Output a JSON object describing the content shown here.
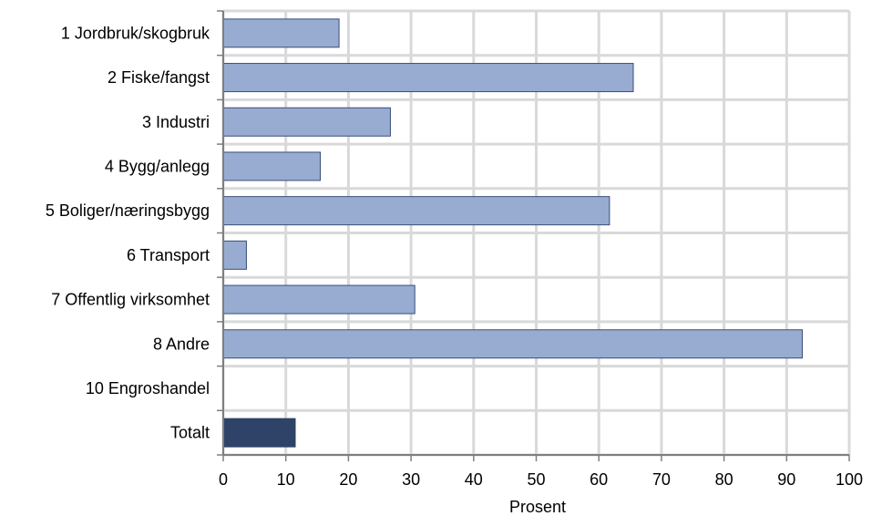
{
  "chart_data": {
    "type": "bar",
    "orientation": "horizontal",
    "categories": [
      "1 Jordbruk/skogbruk",
      "2 Fiske/fangst",
      "3 Industri",
      "4 Bygg/anlegg",
      "5 Boliger/næringsbygg",
      "6 Transport",
      "7 Offentlig virksomhet",
      "8 Andre",
      "10 Engroshandel",
      "Totalt"
    ],
    "values": [
      18.5,
      65.5,
      26.7,
      15.5,
      61.7,
      3.7,
      30.6,
      92.5,
      0.0,
      11.5
    ],
    "title": "",
    "xlabel": "Prosent",
    "ylabel": "",
    "xlim": [
      0,
      100
    ],
    "xticks": [
      "0",
      "10",
      "20",
      "30",
      "40",
      "50",
      "60",
      "70",
      "80",
      "90",
      "100"
    ],
    "grid": true,
    "colors": {
      "bar": "#97acd0",
      "bar_highlight": "#2f4368",
      "bar_stroke": "#3a4d78",
      "grid": "#d9d9d9",
      "axis": "#7f7f7f"
    },
    "highlight_category": "Totalt"
  }
}
